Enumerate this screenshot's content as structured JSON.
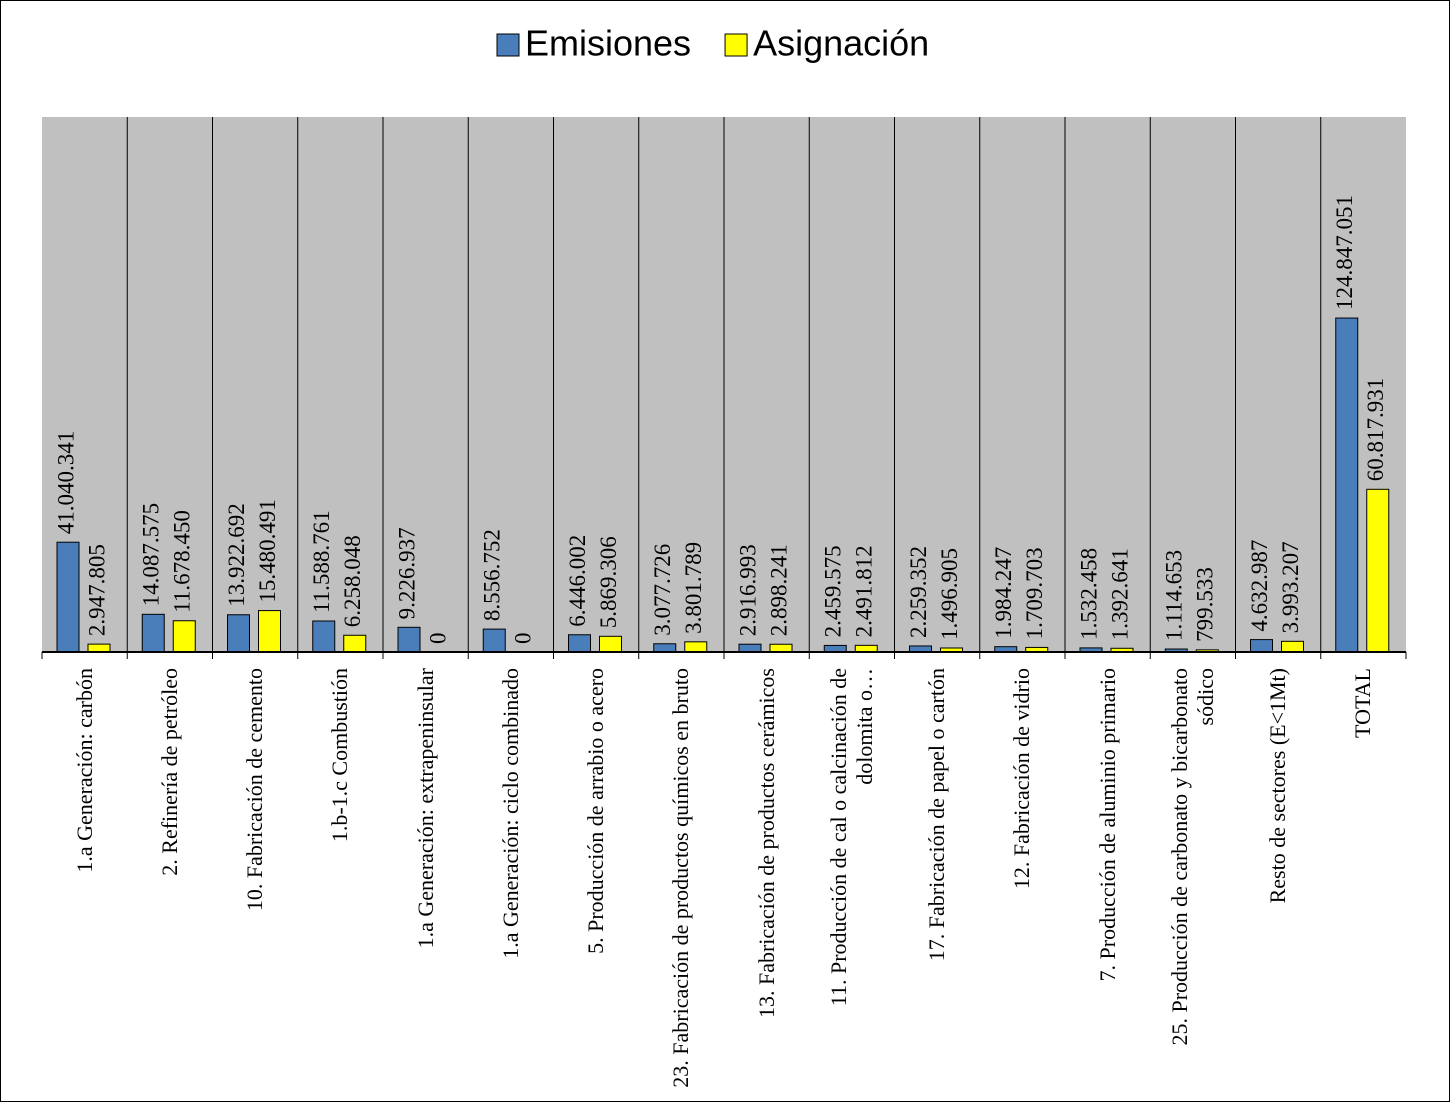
{
  "chart_data": {
    "type": "bar",
    "categories": [
      "1.a Generación: carbón",
      "2. Refinería de petróleo",
      "10. Fabricación de cemento",
      "1.b-1.c Combustión",
      "1.a Generación: extrapeninsular",
      "1.a Generación: ciclo combinado",
      "5. Producción de arrabio o acero",
      "23. Fabricación de productos químicos en bruto",
      "13. Fabricación de productos cerámicos",
      "11. Producción de cal o calcinación de dolomita o…",
      "17. Fabricación de papel o cartón",
      "12. Fabricación de vidrio",
      "7. Producción de aluminio primario",
      "25. Producción de carbonato y bicarbonato sódico",
      "Resto de sectores (E<1Mt)",
      "TOTAL"
    ],
    "series": [
      {
        "name": "Emisiones",
        "color": "#4a7ebb",
        "values": [
          41040341,
          14087575,
          13922692,
          11588761,
          9226937,
          8556752,
          6446002,
          3077726,
          2916993,
          2459575,
          2259352,
          1984247,
          1532458,
          1114653,
          4632987,
          124847051
        ],
        "value_labels": [
          "41.040.341",
          "14.087.575",
          "13.922.692",
          "11.588.761",
          "9.226.937",
          "8.556.752",
          "6.446.002",
          "3.077.726",
          "2.916.993",
          "2.459.575",
          "2.259.352",
          "1.984.247",
          "1.532.458",
          "1.114.653",
          "4.632.987",
          "124.847.051"
        ]
      },
      {
        "name": "Asignación",
        "color": "#ffff00",
        "values": [
          2947805,
          11678450,
          15480491,
          6258048,
          0,
          0,
          5869306,
          3801789,
          2898241,
          2491812,
          1496905,
          1709703,
          1392641,
          799533,
          3993207,
          60817931
        ],
        "value_labels": [
          "2.947.805",
          "11.678.450",
          "15.480.491",
          "6.258.048",
          "0",
          "0",
          "5.869.306",
          "3.801.789",
          "2.898.241",
          "2.491.812",
          "1.496.905",
          "1.709.703",
          "1.392.641",
          "799.533",
          "3.993.207",
          "60.817.931"
        ]
      }
    ],
    "ylim": [
      0,
      200000000
    ]
  }
}
